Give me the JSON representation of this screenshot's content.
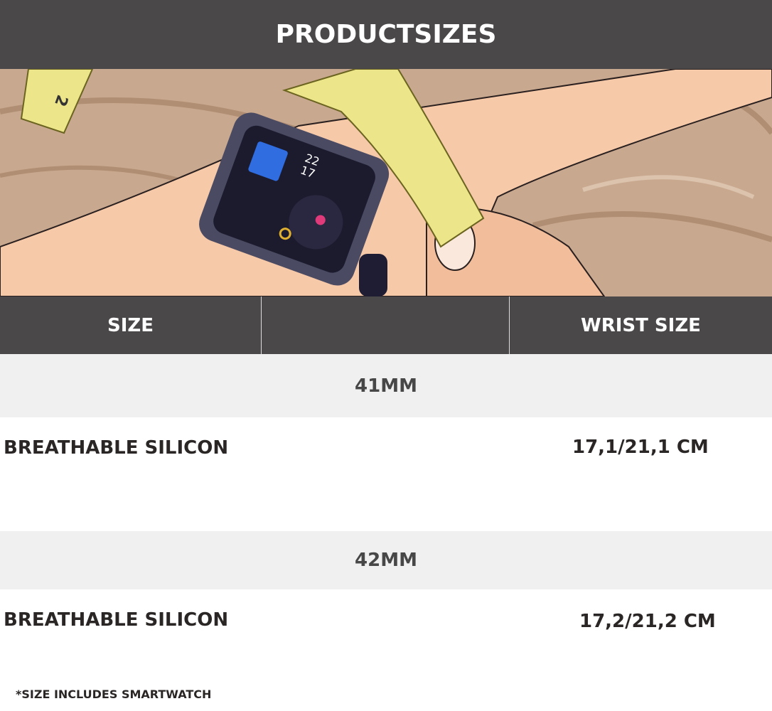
{
  "header": {
    "title": "PRODUCTSIZES"
  },
  "illustration": {
    "watch_time_hour": "22",
    "watch_time_minute": "17",
    "tape_number": "2"
  },
  "table": {
    "columns": [
      "SIZE",
      "",
      "WRIST SIZE"
    ],
    "groups": [
      {
        "size": "41MM",
        "material": "BREATHABLE SILICON",
        "wrist_size": "17,1/21,1 CM"
      },
      {
        "size": "42MM",
        "material": "BREATHABLE SILICON",
        "wrist_size": "17,2/21,2 CM"
      }
    ]
  },
  "footnote": "*SIZE INCLUDES SMARTWATCH",
  "colors": {
    "header_bg": "#4a4849",
    "group_row_bg": "#f0f0f0",
    "text_dark": "#2b2626"
  }
}
